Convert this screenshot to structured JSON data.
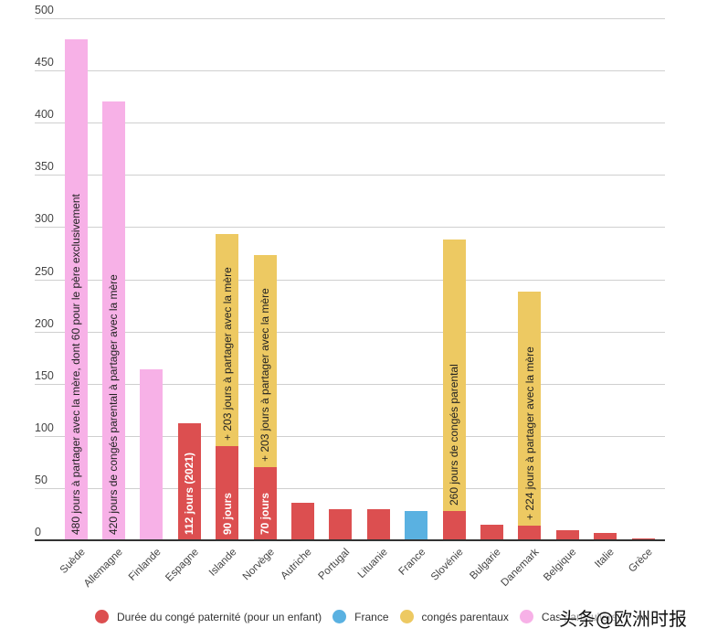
{
  "chart_data": {
    "type": "bar",
    "stacked": true,
    "title": "",
    "xlabel": "",
    "ylabel": "",
    "ylim": [
      0,
      500
    ],
    "yticks": [
      0,
      50,
      100,
      150,
      200,
      250,
      300,
      350,
      400,
      450,
      500
    ],
    "grid": true,
    "legend_position": "bottom",
    "categories": [
      "Suède",
      "Allemagne",
      "Finlande",
      "Espagne",
      "Islande",
      "Norvège",
      "Autriche",
      "Portugal",
      "Lituanie",
      "France",
      "Slovénie",
      "Bulgarie",
      "Danemark",
      "Belgique",
      "Italie",
      "Grèce"
    ],
    "series": [
      {
        "name": "Durée du congé paternité (pour un enfant)",
        "color": "#dc4f50",
        "values": [
          0,
          0,
          0,
          112,
          90,
          70,
          36,
          30,
          30,
          0,
          28,
          15,
          14,
          10,
          7,
          2
        ]
      },
      {
        "name": "France",
        "color": "#5ab1e1",
        "values": [
          0,
          0,
          0,
          0,
          0,
          0,
          0,
          0,
          0,
          28,
          0,
          0,
          0,
          0,
          0,
          0
        ]
      },
      {
        "name": "congés parentaux",
        "color": "#edc962",
        "values": [
          0,
          0,
          0,
          0,
          203,
          203,
          0,
          0,
          0,
          0,
          260,
          0,
          224,
          0,
          0,
          0
        ]
      },
      {
        "name": "Cas particuliers",
        "color": "#f7b1e7",
        "values": [
          480,
          420,
          164,
          0,
          0,
          0,
          0,
          0,
          0,
          0,
          0,
          0,
          0,
          0,
          0,
          0
        ]
      }
    ],
    "annotations": [
      {
        "category": "Suède",
        "series": "Cas particuliers",
        "text": "480 jours à partager avec la mère, dont 60 pour le père exclusivement"
      },
      {
        "category": "Allemagne",
        "series": "Cas particuliers",
        "text": "420 jours de congés parental à partager avec la mère"
      },
      {
        "category": "Espagne",
        "series": "Durée du congé paternité (pour un enfant)",
        "text": "112 jours (2021)"
      },
      {
        "category": "Islande",
        "series": "Durée du congé paternité (pour un enfant)",
        "text": "90 jours"
      },
      {
        "category": "Islande",
        "series": "congés parentaux",
        "text": "+ 203 jours à partager avec la mère"
      },
      {
        "category": "Norvège",
        "series": "Durée du congé paternité (pour un enfant)",
        "text": "70 jours"
      },
      {
        "category": "Norvège",
        "series": "congés parentaux",
        "text": "+ 203 jours à partager avec la mère"
      },
      {
        "category": "Slovénie",
        "series": "congés parentaux",
        "text": "260 jours de congés parental"
      },
      {
        "category": "Danemark",
        "series": "congés parentaux",
        "text": "+ 224 jours à partager avec la mère"
      }
    ]
  },
  "legend": [
    {
      "label": "Durée du congé paternité (pour un enfant)",
      "color": "#dc4f50"
    },
    {
      "label": "France",
      "color": "#5ab1e1"
    },
    {
      "label": "congés parentaux",
      "color": "#edc962"
    },
    {
      "label": "Cas particuliers",
      "color": "#f7b1e7"
    }
  ],
  "watermark": "头条@欧洲时报"
}
